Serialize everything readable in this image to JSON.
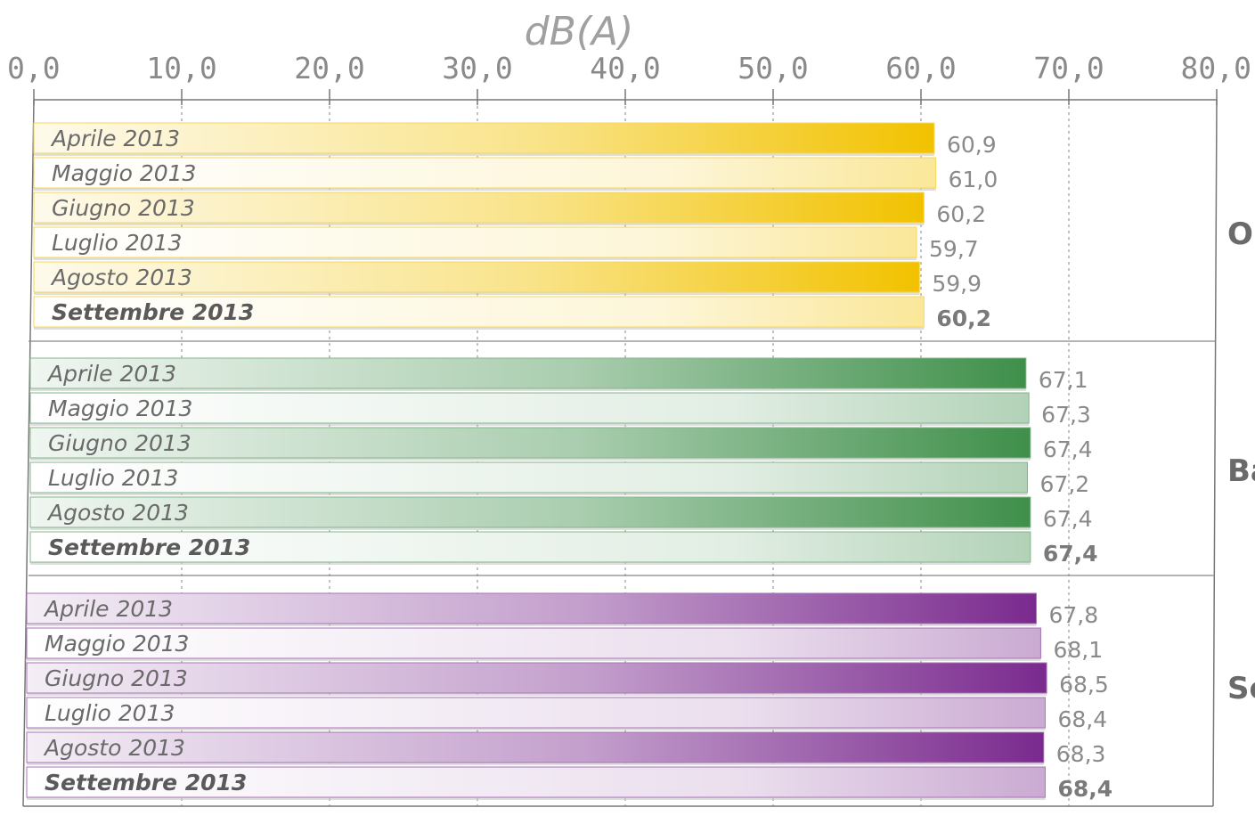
{
  "chart_data": {
    "type": "bar",
    "orientation": "horizontal",
    "xlabel": "dB(A)",
    "xlim": [
      0,
      80
    ],
    "x_ticks": [
      "0,0",
      "10,0",
      "20,0",
      "30,0",
      "40,0",
      "50,0",
      "60,0",
      "70,0",
      "80,0"
    ],
    "grid": true,
    "groups": [
      {
        "name": "O",
        "color": "#f2c200",
        "categories": [
          "Aprile 2013",
          "Maggio 2013",
          "Giugno 2013",
          "Luglio 2013",
          "Agosto 2013",
          "Settembre 2013"
        ],
        "values": [
          60.9,
          61.0,
          60.2,
          59.7,
          59.9,
          60.2
        ],
        "labels": [
          "60,9",
          "61,0",
          "60,2",
          "59,7",
          "59,9",
          "60,2"
        ]
      },
      {
        "name": "Ba",
        "color": "#3f8f4a",
        "categories": [
          "Aprile 2013",
          "Maggio 2013",
          "Giugno 2013",
          "Luglio 2013",
          "Agosto 2013",
          "Settembre 2013"
        ],
        "values": [
          67.1,
          67.3,
          67.4,
          67.2,
          67.4,
          67.4
        ],
        "labels": [
          "67,1",
          "67,3",
          "67,4",
          "67,2",
          "67,4",
          "67,4"
        ]
      },
      {
        "name": "Se",
        "color": "#7a2a8e",
        "categories": [
          "Aprile 2013",
          "Maggio 2013",
          "Giugno 2013",
          "Luglio 2013",
          "Agosto 2013",
          "Settembre 2013"
        ],
        "values": [
          67.8,
          68.1,
          68.5,
          68.4,
          68.3,
          68.4
        ],
        "labels": [
          "67,8",
          "68,1",
          "68,5",
          "68,4",
          "68,3",
          "68,4"
        ]
      }
    ],
    "highlight_category": "Settembre 2013"
  }
}
